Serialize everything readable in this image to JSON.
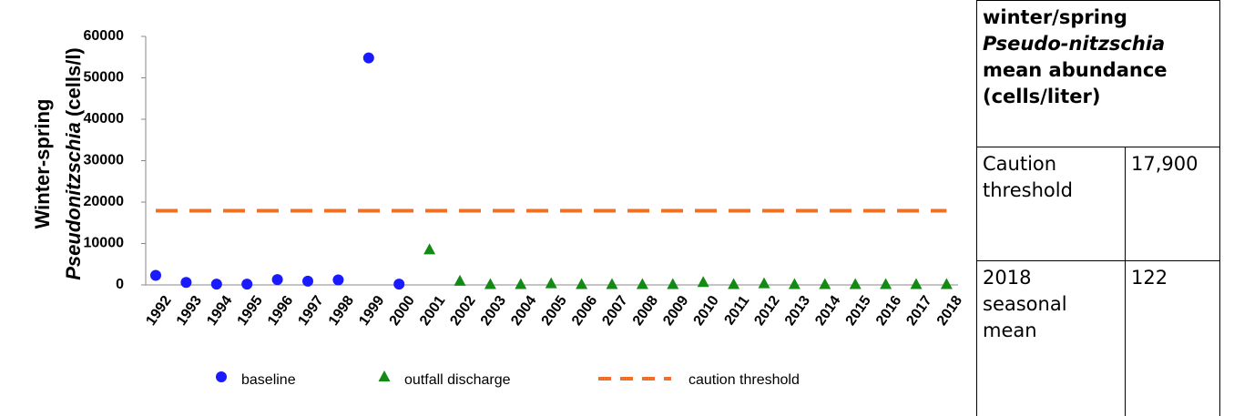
{
  "chart_data": {
    "type": "scatter",
    "y_label": {
      "line1": "Winter-spring",
      "line2_italic": "Pseudonitzschia",
      "line2_rest": "(cells/l)"
    },
    "categories": [
      "1992",
      "1993",
      "1994",
      "1995",
      "1996",
      "1997",
      "1998",
      "1999",
      "2000",
      "2001",
      "2002",
      "2003",
      "2004",
      "2005",
      "2006",
      "2007",
      "2008",
      "2009",
      "2010",
      "2011",
      "2012",
      "2013",
      "2014",
      "2015",
      "2016",
      "2017",
      "2018"
    ],
    "series": [
      {
        "name": "baseline",
        "color": "#1a1aff",
        "marker": "circle",
        "values": [
          2300,
          600,
          200,
          200,
          1300,
          900,
          1200,
          54800,
          200,
          null,
          null,
          null,
          null,
          null,
          null,
          null,
          null,
          null,
          null,
          null,
          null,
          null,
          null,
          null,
          null,
          null,
          null
        ]
      },
      {
        "name": "outfall discharge",
        "color": "#138a13",
        "marker": "triangle",
        "values": [
          null,
          null,
          null,
          null,
          null,
          null,
          null,
          null,
          null,
          8500,
          900,
          100,
          100,
          300,
          100,
          100,
          100,
          100,
          600,
          100,
          300,
          100,
          100,
          100,
          100,
          100,
          122
        ]
      },
      {
        "name": "caution threshold",
        "color": "#f07125",
        "marker": "dash",
        "values": [
          17900,
          17900,
          17900,
          17900,
          17900,
          17900,
          17900,
          17900,
          17900,
          17900,
          17900,
          17900,
          17900,
          17900,
          17900,
          17900,
          17900,
          17900,
          17900,
          17900,
          17900,
          17900,
          17900,
          17900,
          17900,
          17900,
          17900
        ]
      }
    ],
    "ylim": [
      0,
      60000
    ],
    "yticks": [
      0,
      10000,
      20000,
      30000,
      40000,
      50000,
      60000
    ],
    "grid": false
  },
  "table": {
    "header": [
      "winter/spring",
      "Pseudo-nitzschia",
      "mean abundance",
      "(cells/liter)"
    ],
    "rows": [
      [
        "Caution threshold",
        "17,900"
      ],
      [
        "2018 seasonal mean",
        "122"
      ]
    ]
  }
}
